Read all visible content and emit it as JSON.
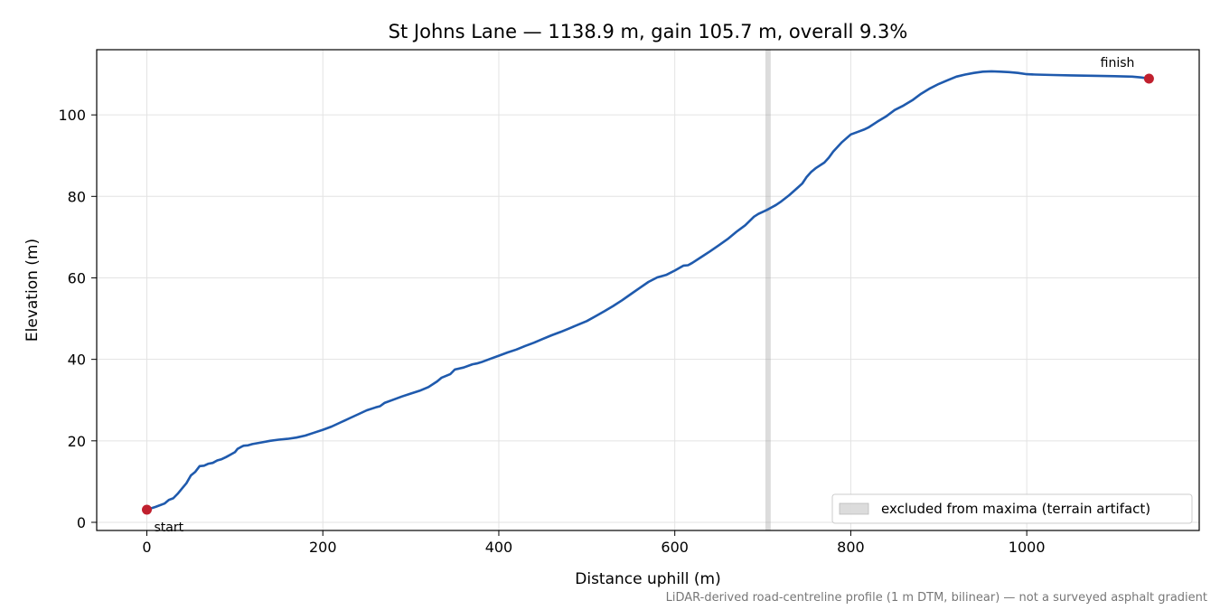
{
  "chart_data": {
    "type": "line",
    "title": "St Johns Lane — 1138.9 m, gain 105.7 m, overall 9.3%",
    "xlabel": "Distance uphill (m)",
    "ylabel": "Elevation (m)",
    "xlim": [
      -57,
      1196
    ],
    "ylim": [
      -2,
      116
    ],
    "x_ticks": [
      0,
      200,
      400,
      600,
      800,
      1000
    ],
    "y_ticks": [
      0,
      20,
      40,
      60,
      80,
      100
    ],
    "grid": true,
    "series": [
      {
        "color": "#1f5aad",
        "x": [
          0,
          10,
          20,
          25,
          30,
          35,
          40,
          45,
          50,
          55,
          60,
          65,
          70,
          75,
          80,
          85,
          90,
          95,
          100,
          103,
          107,
          110,
          115,
          120,
          125,
          130,
          140,
          150,
          160,
          170,
          180,
          190,
          200,
          210,
          220,
          230,
          240,
          250,
          260,
          265,
          270,
          280,
          290,
          300,
          310,
          320,
          330,
          335,
          345,
          350,
          360,
          370,
          375,
          380,
          390,
          400,
          410,
          420,
          430,
          440,
          450,
          460,
          470,
          480,
          490,
          500,
          510,
          520,
          530,
          540,
          550,
          560,
          570,
          580,
          590,
          600,
          610,
          615,
          620,
          630,
          640,
          650,
          660,
          670,
          680,
          690,
          695,
          700,
          705,
          710,
          715,
          720,
          730,
          740,
          745,
          750,
          755,
          760,
          770,
          775,
          780,
          790,
          800,
          810,
          815,
          820,
          830,
          840,
          850,
          860,
          870,
          880,
          890,
          900,
          910,
          920,
          930,
          940,
          950,
          960,
          970,
          980,
          990,
          1000,
          1010,
          1030,
          1050,
          1080,
          1100,
          1120,
          1130,
          1138.9
        ],
        "y": [
          3.1,
          3.8,
          4.6,
          5.5,
          5.9,
          7.0,
          8.3,
          9.6,
          11.5,
          12.4,
          13.8,
          13.9,
          14.4,
          14.6,
          15.2,
          15.5,
          16.0,
          16.6,
          17.2,
          18.0,
          18.5,
          18.8,
          18.9,
          19.2,
          19.4,
          19.6,
          20.0,
          20.3,
          20.5,
          20.8,
          21.3,
          22.0,
          22.7,
          23.5,
          24.5,
          25.5,
          26.5,
          27.5,
          28.2,
          28.5,
          29.3,
          30.1,
          30.9,
          31.6,
          32.3,
          33.2,
          34.6,
          35.5,
          36.4,
          37.5,
          38.0,
          38.8,
          39.0,
          39.3,
          40.1,
          40.9,
          41.7,
          42.4,
          43.3,
          44.1,
          45.0,
          45.9,
          46.7,
          47.6,
          48.5,
          49.4,
          50.6,
          51.8,
          53.1,
          54.5,
          56.0,
          57.5,
          59.0,
          60.1,
          60.7,
          61.8,
          63.0,
          63.1,
          63.7,
          65.1,
          66.5,
          68.0,
          69.5,
          71.3,
          72.9,
          75.0,
          75.7,
          76.2,
          76.7,
          77.3,
          77.9,
          78.6,
          80.3,
          82.2,
          83.2,
          84.8,
          86.0,
          86.9,
          88.3,
          89.5,
          91.0,
          93.3,
          95.2,
          96.0,
          96.4,
          96.9,
          98.3,
          99.6,
          101.2,
          102.3,
          103.6,
          105.2,
          106.5,
          107.6,
          108.5,
          109.4,
          109.9,
          110.3,
          110.6,
          110.7,
          110.6,
          110.5,
          110.3,
          110.0,
          109.9,
          109.8,
          109.7,
          109.6,
          109.5,
          109.4,
          109.2,
          108.9
        ]
      }
    ],
    "markers": [
      {
        "x": 0,
        "y": 3.1,
        "label": "start"
      },
      {
        "x": 1138.9,
        "y": 108.9,
        "label": "finish"
      }
    ],
    "excluded_band": {
      "x_start": 703,
      "x_end": 709,
      "label": "excluded from maxima (terrain artifact)"
    },
    "legend_position": "bottom-right",
    "footnote": "LiDAR-derived road-centreline profile (1 m DTM, bilinear) — not a surveyed asphalt gradient"
  }
}
